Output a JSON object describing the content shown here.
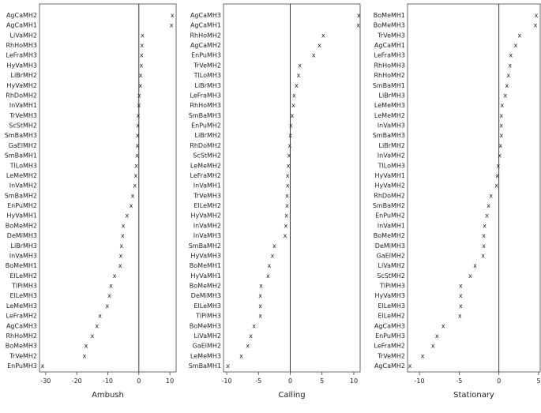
{
  "chart_data": [
    {
      "type": "scatter",
      "xlabel": "Ambush",
      "xlim": [
        -32,
        12
      ],
      "xticks": [
        -30,
        -20,
        -10,
        0,
        10
      ],
      "reference_line_x": 0,
      "marker": "x",
      "categories": [
        "AgCaMH2",
        "AgCaMH1",
        "LiVaMH2",
        "RhHoMH3",
        "LeFraMH3",
        "HyVaMH3",
        "LiBrMH2",
        "HyVaMH2",
        "RhDoMH2",
        "InVaMH1",
        "TrVeMH3",
        "ScStMH2",
        "SmBaMH3",
        "GaElMH2",
        "SmBaMH1",
        "TlLoMH3",
        "LeMeMH2",
        "InVaMH2",
        "SmBaMH2",
        "EnPuMH2",
        "HyVaMH1",
        "BoMeMH2",
        "DeMiMH3",
        "LiBrMH3",
        "InVaMH3",
        "BoMeMH1",
        "ElLeMH2",
        "TlPiMH3",
        "ElLeMH3",
        "LeMeMH3",
        "LeFraMH2",
        "AgCaMH3",
        "RhHoMH2",
        "BoMeMH3",
        "TrVeMH2",
        "EnPuMH3"
      ],
      "values": [
        10.8,
        10.5,
        1.2,
        1.0,
        0.9,
        0.8,
        0.6,
        0.5,
        0.1,
        0,
        -0.2,
        -0.3,
        -0.4,
        -0.5,
        -0.6,
        -0.8,
        -1.0,
        -1.3,
        -2.0,
        -2.5,
        -3.8,
        -5.0,
        -5.2,
        -5.6,
        -5.8,
        -6.0,
        -7.8,
        -9.0,
        -9.5,
        -10.2,
        -12.5,
        -13.5,
        -15.0,
        -17.0,
        -17.5,
        -31.0
      ]
    },
    {
      "type": "scatter",
      "xlabel": "Calling",
      "xlim": [
        -10.5,
        11
      ],
      "xticks": [
        -10,
        -5,
        0,
        5,
        10
      ],
      "reference_line_x": 0,
      "marker": "x",
      "categories": [
        "AgCaMH3",
        "AgCaMH1",
        "RhHoMH2",
        "AgCaMH2",
        "EnPuMH3",
        "TrVeMH2",
        "TlLoMH3",
        "LiBrMH3",
        "LeFraMH3",
        "RhHoMH3",
        "SmBaMH3",
        "EnPuMH2",
        "LiBrMH2",
        "RhDoMH2",
        "ScStMH2",
        "LeMeMH2",
        "LeFraMH2",
        "InVaMH1",
        "TrVeMH3",
        "ElLeMH2",
        "HyVaMH2",
        "InVaMH2",
        "InVaMH3",
        "SmBaMH2",
        "HyVaMH3",
        "BoMeMH1",
        "HyVaMH1",
        "BoMeMH2",
        "DeMiMH3",
        "ElLeMH3",
        "TlPiMH3",
        "BoMeMH3",
        "LiVaMH2",
        "GaElMH2",
        "LeMeMH3",
        "SmBaMH1"
      ],
      "values": [
        10.8,
        10.7,
        5.2,
        4.6,
        3.7,
        1.5,
        1.3,
        1.0,
        0.6,
        0.5,
        0.3,
        0.1,
        0,
        -0.1,
        -0.2,
        -0.3,
        -0.4,
        -0.4,
        -0.5,
        -0.5,
        -0.6,
        -0.7,
        -0.8,
        -2.5,
        -2.8,
        -3.3,
        -3.5,
        -4.6,
        -4.7,
        -4.7,
        -4.7,
        -5.7,
        -6.2,
        -6.7,
        -7.7,
        -9.8
      ]
    },
    {
      "type": "scatter",
      "xlabel": "Stationary",
      "xlim": [
        -11.5,
        5.2
      ],
      "xticks": [
        -10,
        -5,
        0,
        5
      ],
      "reference_line_x": 0,
      "marker": "x",
      "categories": [
        "BoMeMH1",
        "BoMeMH3",
        "TrVeMH3",
        "AgCaMH1",
        "LeFraMH3",
        "RhHoMH3",
        "RhHoMH2",
        "SmBaMH1",
        "LiBrMH3",
        "LeMeMH3",
        "LeMeMH2",
        "InVaMH3",
        "SmBaMH3",
        "LiBrMH2",
        "InVaMH2",
        "TlLoMH3",
        "HyVaMH1",
        "HyVaMH2",
        "RhDoMH2",
        "SmBaMH2",
        "EnPuMH2",
        "InVaMH1",
        "BoMeMH2",
        "DeMiMH3",
        "GaElMH2",
        "LiVaMH2",
        "ScStMH2",
        "TlPiMH3",
        "HyVaMH3",
        "ElLeMH3",
        "ElLeMH2",
        "AgCaMH3",
        "EnPuMH3",
        "LeFraMH2",
        "TrVeMH2",
        "AgCaMH2"
      ],
      "values": [
        4.7,
        4.6,
        2.6,
        2.1,
        1.5,
        1.4,
        1.2,
        1.0,
        0.8,
        0.4,
        0.3,
        0.3,
        0.3,
        0.2,
        0.1,
        -0.1,
        -0.2,
        -0.3,
        -1.0,
        -1.3,
        -1.5,
        -1.8,
        -1.9,
        -1.9,
        -2.0,
        -3.0,
        -3.6,
        -4.8,
        -4.8,
        -4.8,
        -4.9,
        -7.0,
        -7.8,
        -8.3,
        -9.6,
        -11.2
      ]
    }
  ]
}
